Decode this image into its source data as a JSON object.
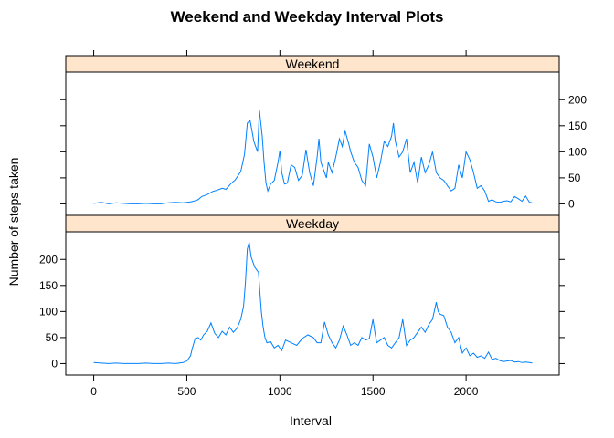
{
  "chart_data": {
    "type": "line",
    "title": "Weekend and Weekday Interval Plots",
    "xlabel": "Interval",
    "ylabel": "Number of steps taken",
    "xlim": [
      -150,
      2500
    ],
    "ylim": [
      -22,
      253
    ],
    "x_ticks": [
      "0",
      "500",
      "1000",
      "1500",
      "2000"
    ],
    "y_ticks": [
      "0",
      "50",
      "100",
      "150",
      "200"
    ],
    "colors": {
      "line": "#0080ff",
      "strip": "#ffe5cc",
      "frame": "#000000"
    },
    "series": [
      {
        "name": "Weekend",
        "x": [
          0,
          40,
          80,
          120,
          160,
          200,
          240,
          280,
          320,
          360,
          400,
          440,
          480,
          520,
          545,
          560,
          580,
          610,
          640,
          660,
          690,
          710,
          740,
          760,
          790,
          810,
          825,
          840,
          850,
          860,
          870,
          880,
          890,
          905,
          915,
          925,
          935,
          950,
          970,
          990,
          1000,
          1010,
          1025,
          1040,
          1060,
          1080,
          1100,
          1120,
          1140,
          1160,
          1180,
          1200,
          1210,
          1220,
          1240,
          1250,
          1260,
          1280,
          1300,
          1320,
          1335,
          1350,
          1370,
          1380,
          1400,
          1420,
          1440,
          1460,
          1480,
          1500,
          1520,
          1540,
          1560,
          1580,
          1600,
          1610,
          1620,
          1640,
          1660,
          1680,
          1700,
          1720,
          1740,
          1760,
          1780,
          1800,
          1820,
          1840,
          1860,
          1880,
          1900,
          1920,
          1940,
          1960,
          1980,
          2000,
          2020,
          2040,
          2060,
          2080,
          2100,
          2120,
          2140,
          2160,
          2180,
          2200,
          2220,
          2240,
          2260,
          2280,
          2300,
          2320,
          2340,
          2355
        ],
        "y": [
          1,
          3,
          0,
          2,
          1,
          0,
          0,
          1,
          0,
          0,
          2,
          3,
          2,
          4,
          6,
          8,
          14,
          18,
          24,
          26,
          30,
          28,
          40,
          46,
          62,
          95,
          155,
          160,
          140,
          120,
          110,
          100,
          180,
          130,
          80,
          40,
          25,
          38,
          45,
          80,
          102,
          60,
          38,
          40,
          75,
          70,
          45,
          55,
          104,
          60,
          35,
          90,
          125,
          80,
          60,
          50,
          80,
          60,
          90,
          125,
          110,
          140,
          115,
          100,
          80,
          70,
          45,
          35,
          115,
          90,
          50,
          80,
          120,
          110,
          130,
          155,
          120,
          90,
          100,
          125,
          60,
          80,
          40,
          90,
          60,
          75,
          100,
          60,
          50,
          45,
          35,
          25,
          30,
          75,
          50,
          100,
          85,
          60,
          30,
          35,
          25,
          5,
          8,
          4,
          3,
          5,
          6,
          4,
          14,
          10,
          5,
          15,
          3,
          2
        ]
      },
      {
        "name": "Weekday",
        "x": [
          0,
          40,
          80,
          120,
          160,
          200,
          240,
          280,
          320,
          360,
          400,
          440,
          480,
          500,
          520,
          530,
          545,
          560,
          575,
          590,
          610,
          630,
          650,
          670,
          690,
          710,
          730,
          750,
          770,
          790,
          805,
          815,
          825,
          835,
          845,
          855,
          865,
          875,
          885,
          900,
          910,
          920,
          930,
          950,
          970,
          990,
          1010,
          1030,
          1060,
          1090,
          1120,
          1150,
          1180,
          1200,
          1220,
          1240,
          1260,
          1280,
          1300,
          1320,
          1340,
          1360,
          1380,
          1400,
          1420,
          1440,
          1460,
          1480,
          1500,
          1510,
          1520,
          1540,
          1560,
          1580,
          1600,
          1620,
          1640,
          1660,
          1680,
          1700,
          1720,
          1740,
          1760,
          1780,
          1800,
          1820,
          1840,
          1850,
          1860,
          1880,
          1900,
          1920,
          1940,
          1960,
          1980,
          2000,
          2020,
          2040,
          2060,
          2080,
          2100,
          2120,
          2140,
          2160,
          2180,
          2200,
          2220,
          2240,
          2260,
          2280,
          2300,
          2320,
          2340,
          2355
        ],
        "y": [
          2,
          1,
          0,
          1,
          0,
          0,
          0,
          1,
          0,
          0,
          1,
          0,
          2,
          5,
          15,
          30,
          48,
          50,
          45,
          55,
          62,
          78,
          58,
          50,
          62,
          55,
          70,
          60,
          68,
          85,
          110,
          155,
          220,
          233,
          205,
          195,
          185,
          180,
          175,
          100,
          70,
          50,
          40,
          42,
          30,
          35,
          25,
          45,
          40,
          35,
          48,
          55,
          50,
          40,
          40,
          80,
          55,
          40,
          30,
          45,
          72,
          55,
          35,
          40,
          35,
          50,
          45,
          48,
          85,
          60,
          40,
          45,
          50,
          35,
          30,
          40,
          50,
          85,
          35,
          45,
          50,
          60,
          70,
          60,
          75,
          85,
          118,
          100,
          95,
          92,
          70,
          60,
          40,
          50,
          20,
          30,
          15,
          20,
          12,
          15,
          10,
          22,
          8,
          10,
          6,
          4,
          5,
          6,
          3,
          4,
          2,
          3,
          2,
          1
        ]
      }
    ]
  }
}
